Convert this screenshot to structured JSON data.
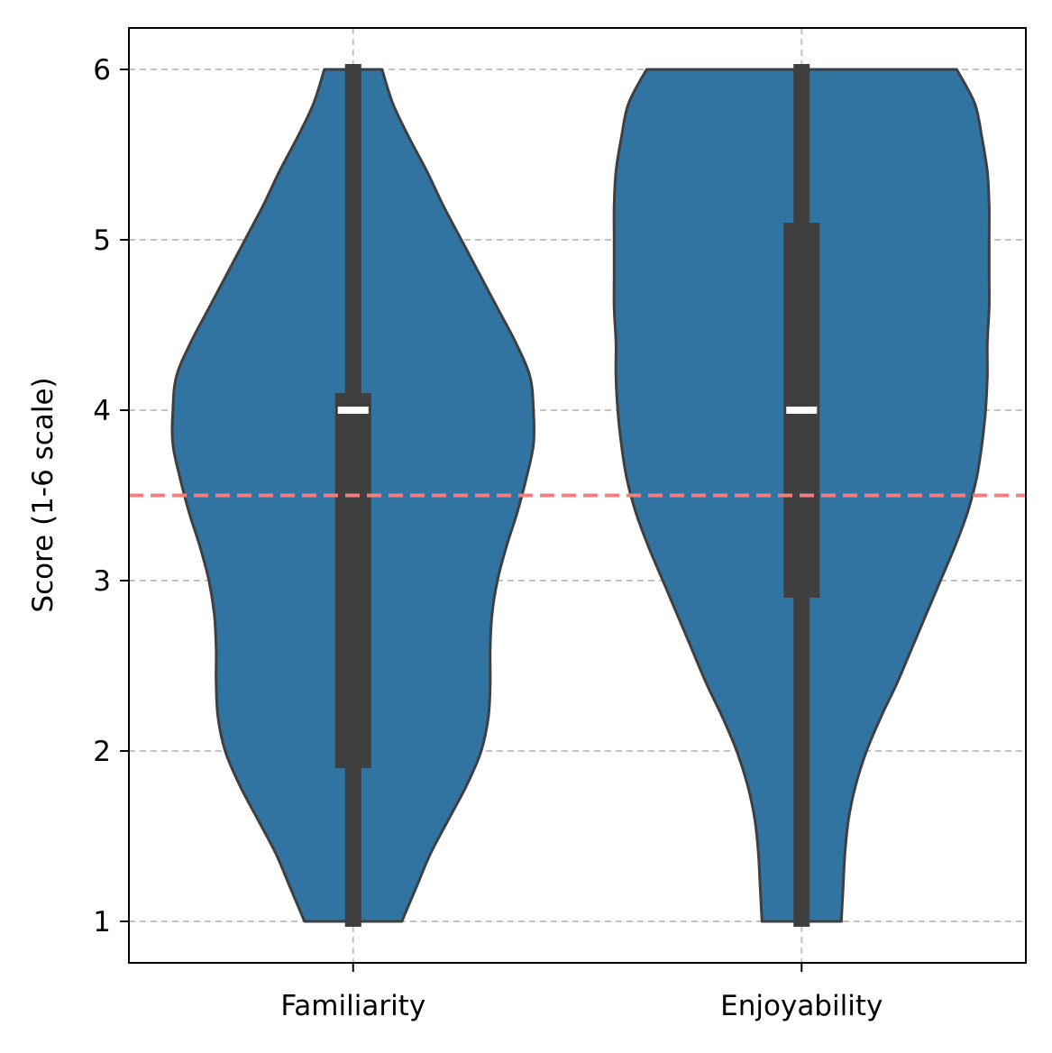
{
  "chart_data": {
    "type": "violin",
    "ylabel": "Score (1-6 scale)",
    "xlabel": "",
    "title": "",
    "ylim": [
      0.75,
      6.25
    ],
    "yticks": [
      1,
      2,
      3,
      4,
      5,
      6
    ],
    "grid": true,
    "colors": {
      "violin_fill": "#3274a1",
      "violin_edge": "#3f3f3f",
      "box": "#3f3f3f",
      "median": "#ffffff",
      "grid": "#c3c3c3",
      "reference_line": "#f08080"
    },
    "reference_line": {
      "y": 3.5,
      "style": "dashed"
    },
    "categories": [
      "Familiarity",
      "Enjoyability"
    ],
    "series": [
      {
        "category": "Familiarity",
        "min": 1,
        "q1": 1.9,
        "median": 4,
        "q3": 4.1,
        "max": 6,
        "density_profile": [
          [
            1.0,
            0.27
          ],
          [
            1.2,
            0.35
          ],
          [
            1.4,
            0.43
          ],
          [
            1.6,
            0.53
          ],
          [
            1.8,
            0.63
          ],
          [
            2.0,
            0.71
          ],
          [
            2.2,
            0.75
          ],
          [
            2.4,
            0.76
          ],
          [
            2.6,
            0.76
          ],
          [
            2.8,
            0.77
          ],
          [
            3.0,
            0.8
          ],
          [
            3.2,
            0.85
          ],
          [
            3.4,
            0.91
          ],
          [
            3.6,
            0.96
          ],
          [
            3.8,
            1.0
          ],
          [
            4.0,
            1.0
          ],
          [
            4.2,
            0.98
          ],
          [
            4.4,
            0.9
          ],
          [
            4.6,
            0.8
          ],
          [
            4.8,
            0.7
          ],
          [
            5.0,
            0.6
          ],
          [
            5.2,
            0.5
          ],
          [
            5.4,
            0.41
          ],
          [
            5.6,
            0.31
          ],
          [
            5.8,
            0.22
          ],
          [
            6.0,
            0.16
          ]
        ]
      },
      {
        "category": "Enjoyability",
        "min": 1,
        "q1": 2.9,
        "median": 4,
        "q3": 5.1,
        "max": 6,
        "density_profile": [
          [
            1.0,
            0.22
          ],
          [
            1.2,
            0.23
          ],
          [
            1.4,
            0.24
          ],
          [
            1.6,
            0.26
          ],
          [
            1.8,
            0.3
          ],
          [
            2.0,
            0.36
          ],
          [
            2.2,
            0.44
          ],
          [
            2.4,
            0.53
          ],
          [
            2.6,
            0.61
          ],
          [
            2.8,
            0.69
          ],
          [
            3.0,
            0.77
          ],
          [
            3.2,
            0.85
          ],
          [
            3.4,
            0.92
          ],
          [
            3.6,
            0.97
          ],
          [
            3.8,
            1.0
          ],
          [
            4.0,
            1.02
          ],
          [
            4.2,
            1.03
          ],
          [
            4.4,
            1.03
          ],
          [
            4.6,
            1.04
          ],
          [
            4.8,
            1.04
          ],
          [
            5.0,
            1.04
          ],
          [
            5.2,
            1.04
          ],
          [
            5.4,
            1.03
          ],
          [
            5.6,
            1.0
          ],
          [
            5.8,
            0.96
          ],
          [
            6.0,
            0.86
          ]
        ]
      }
    ]
  }
}
